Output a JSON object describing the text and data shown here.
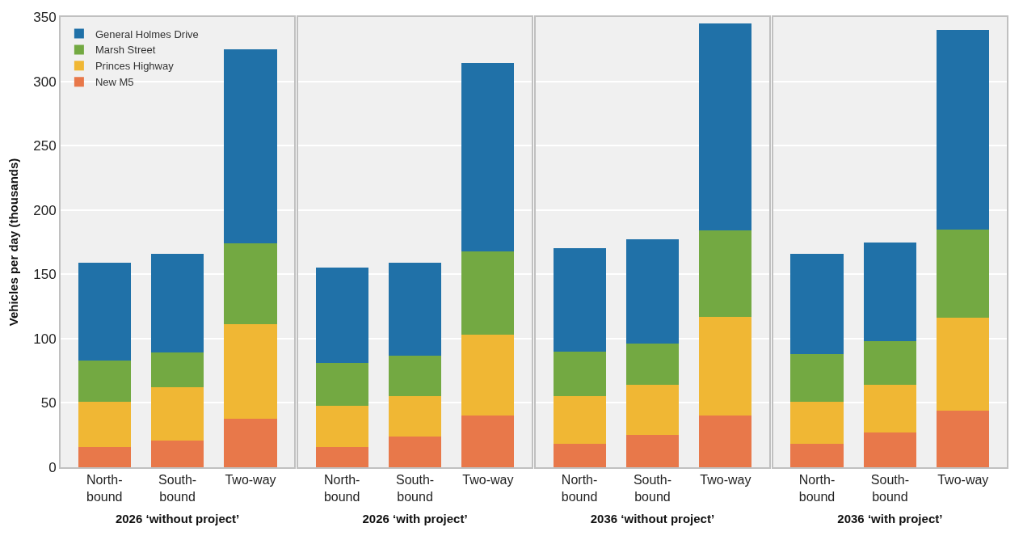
{
  "chart_data": [
    {
      "type": "bar",
      "stacked": true,
      "xlabel": "2026 ‘without project’",
      "ylabel": "Vehicles per day (thousands)",
      "categories": [
        "North-\nbound",
        "South-\nbound",
        "Two-way"
      ],
      "ylim": [
        0,
        350
      ],
      "yticks": [
        0,
        50,
        100,
        150,
        200,
        250,
        300,
        350
      ],
      "grid": "y",
      "legend": "top left",
      "series": [
        {
          "name": "New M5",
          "color": "#e8784a",
          "values": [
            16,
            21,
            38
          ]
        },
        {
          "name": "Princes Highway",
          "color": "#f0b734",
          "values": [
            35,
            41,
            73
          ]
        },
        {
          "name": "Marsh Street",
          "color": "#73a942",
          "values": [
            32,
            27,
            63
          ]
        },
        {
          "name": "General Holmes Drive",
          "color": "#2071a8",
          "values": [
            76,
            77,
            151
          ]
        }
      ]
    },
    {
      "type": "bar",
      "stacked": true,
      "xlabel": "2026 ‘with project’",
      "categories": [
        "North-\nbound",
        "South-\nbound",
        "Two-way"
      ],
      "ylim": [
        0,
        350
      ],
      "yticks": [
        0,
        50,
        100,
        150,
        200,
        250,
        300,
        350
      ],
      "grid": "y",
      "tick_labels": "x",
      "series": [
        {
          "color": "#e8784a",
          "values": [
            16,
            24,
            40
          ]
        },
        {
          "color": "#f0b734",
          "values": [
            32,
            31,
            63
          ]
        },
        {
          "color": "#73a942",
          "values": [
            33,
            32,
            65
          ]
        },
        {
          "color": "#2071a8",
          "values": [
            74,
            72,
            146
          ]
        }
      ]
    },
    {
      "type": "bar",
      "stacked": true,
      "xlabel": "2036 ‘without project’",
      "categories": [
        "North-\nbound",
        "South-\nbound",
        "Two-way"
      ],
      "ylim": [
        0,
        350
      ],
      "yticks": [
        0,
        50,
        100,
        150,
        200,
        250,
        300,
        350
      ],
      "grid": "y",
      "tick_labels": "x",
      "series": [
        {
          "color": "#e8784a",
          "values": [
            18,
            25,
            40
          ]
        },
        {
          "color": "#f0b734",
          "values": [
            37,
            39,
            77
          ]
        },
        {
          "color": "#73a942",
          "values": [
            35,
            32,
            67
          ]
        },
        {
          "color": "#2071a8",
          "values": [
            80,
            81,
            161
          ]
        }
      ]
    },
    {
      "type": "bar",
      "stacked": true,
      "xlabel": "2036 ‘with project’",
      "categories": [
        "North-\nbound",
        "South-\nbound",
        "Two-way"
      ],
      "ylim": [
        0,
        350
      ],
      "yticks": [
        0,
        50,
        100,
        150,
        200,
        250,
        300,
        350
      ],
      "grid": "y",
      "tick_labels": "x",
      "series": [
        {
          "color": "#e8784a",
          "values": [
            18,
            27,
            44
          ]
        },
        {
          "color": "#f0b734",
          "values": [
            33,
            37,
            72
          ]
        },
        {
          "color": "#73a942",
          "values": [
            37,
            34,
            69
          ]
        },
        {
          "color": "#2071a8",
          "values": [
            78,
            77,
            155
          ]
        }
      ]
    }
  ]
}
